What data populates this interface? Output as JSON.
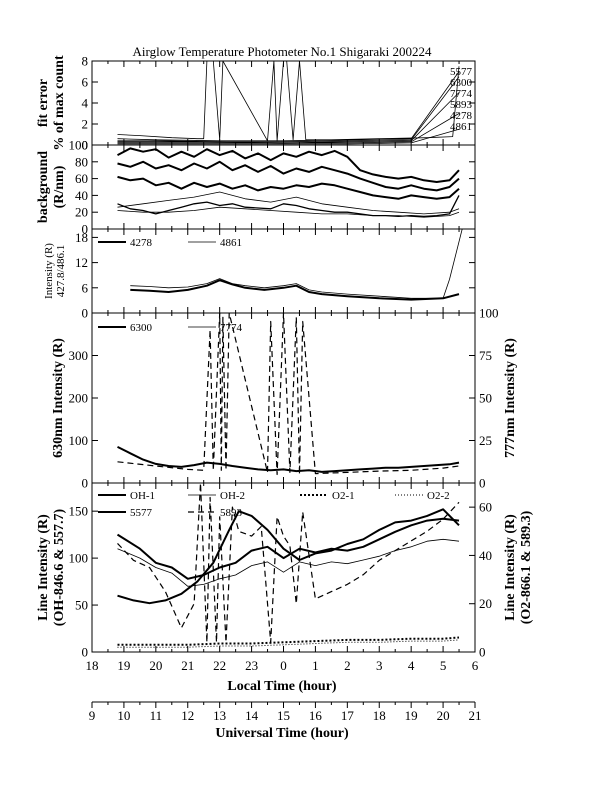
{
  "title": "Airglow Temperature Photometer No.1  Shigaraki  200224",
  "x_axis": {
    "label": "Local Time (hour)",
    "ticks": [
      "18",
      "19",
      "20",
      "21",
      "22",
      "23",
      "0",
      "1",
      "2",
      "3",
      "4",
      "5",
      "6"
    ]
  },
  "x2_axis": {
    "label": "Universal Time (hour)",
    "ticks": [
      "9",
      "10",
      "11",
      "12",
      "13",
      "14",
      "15",
      "16",
      "17",
      "18",
      "19",
      "20",
      "21"
    ]
  },
  "chart_data": [
    {
      "type": "line",
      "ylabel": [
        "fit error",
        "% of max count"
      ],
      "ylim": [
        0,
        8
      ],
      "yticks": [
        "0",
        "2",
        "4",
        "6",
        "8"
      ],
      "series_labels": [
        "5577",
        "6300",
        "7774",
        "5893",
        "4278",
        "4861"
      ],
      "series": [
        {
          "name": "5577",
          "style": "thin",
          "x": [
            18.8,
            19.5,
            20.5,
            21.3,
            21.5,
            21.6,
            21.8,
            22.0,
            22.1,
            23.5,
            23.7,
            23.8,
            24.0,
            24.1,
            24.3,
            24.5,
            24.7,
            25.5,
            27.0,
            28.5,
            29.3,
            29.5
          ],
          "y": [
            1.0,
            0.9,
            0.7,
            0.6,
            0.6,
            8.0,
            8.0,
            0.5,
            8.0,
            0.4,
            8.0,
            0.4,
            8.0,
            8.0,
            0.5,
            8.0,
            0.5,
            0.5,
            0.6,
            0.7,
            0.8,
            7.5
          ]
        },
        {
          "name": "6300",
          "style": "thin",
          "x": [
            18.8,
            20.0,
            22.0,
            24.0,
            26.0,
            28.0,
            29.5
          ],
          "y": [
            0.6,
            0.5,
            0.4,
            0.4,
            0.5,
            0.6,
            7.0
          ]
        },
        {
          "name": "7774",
          "style": "thin",
          "x": [
            18.8,
            20.0,
            22.0,
            24.0,
            26.0,
            28.0,
            29.5
          ],
          "y": [
            0.4,
            0.4,
            0.3,
            0.3,
            0.4,
            0.5,
            6.5
          ]
        },
        {
          "name": "5893",
          "style": "thin",
          "x": [
            18.8,
            20.0,
            22.0,
            24.0,
            26.0,
            28.0,
            29.5
          ],
          "y": [
            0.3,
            0.3,
            0.3,
            0.2,
            0.3,
            0.4,
            5.0
          ]
        },
        {
          "name": "4278",
          "style": "thin",
          "x": [
            18.8,
            20.0,
            22.0,
            24.0,
            26.0,
            28.0,
            29.5
          ],
          "y": [
            0.2,
            0.2,
            0.2,
            0.2,
            0.2,
            0.3,
            3.0
          ]
        },
        {
          "name": "4861",
          "style": "thin",
          "x": [
            18.8,
            20.0,
            22.0,
            24.0,
            26.0,
            28.0,
            29.5
          ],
          "y": [
            0.1,
            0.1,
            0.1,
            0.1,
            0.1,
            0.2,
            1.5
          ]
        }
      ]
    },
    {
      "type": "line",
      "ylabel": [
        "background",
        "(R/nm)"
      ],
      "ylim": [
        0,
        100
      ],
      "yticks": [
        "0",
        "20",
        "40",
        "60",
        "80",
        "100"
      ],
      "series": [
        {
          "style": "thick",
          "x": [
            18.8,
            19.2,
            19.6,
            20.0,
            20.4,
            20.8,
            21.2,
            21.6,
            22.0,
            22.4,
            22.8,
            23.2,
            23.6,
            24.0,
            24.4,
            24.8,
            25.2,
            25.6,
            26.0,
            26.4,
            26.8,
            27.2,
            27.6,
            28.0,
            28.4,
            28.8,
            29.2,
            29.5
          ],
          "y": [
            88,
            96,
            92,
            95,
            85,
            92,
            86,
            95,
            88,
            93,
            84,
            90,
            82,
            90,
            86,
            92,
            88,
            93,
            86,
            70,
            65,
            62,
            60,
            62,
            58,
            56,
            58,
            70
          ]
        },
        {
          "style": "thick",
          "x": [
            18.8,
            19.2,
            19.6,
            20.0,
            20.4,
            20.8,
            21.2,
            21.6,
            22.0,
            22.4,
            22.8,
            23.2,
            23.6,
            24.0,
            24.4,
            24.8,
            25.2,
            25.6,
            26.0,
            26.4,
            26.8,
            27.2,
            27.6,
            28.0,
            28.4,
            28.8,
            29.2,
            29.5
          ],
          "y": [
            78,
            74,
            80,
            72,
            76,
            70,
            78,
            72,
            80,
            70,
            76,
            68,
            75,
            66,
            72,
            68,
            74,
            70,
            66,
            60,
            55,
            50,
            48,
            52,
            48,
            46,
            50,
            60
          ]
        },
        {
          "style": "thick",
          "x": [
            18.8,
            19.2,
            19.6,
            20.0,
            20.4,
            20.8,
            21.2,
            21.6,
            22.0,
            22.4,
            22.8,
            23.2,
            23.6,
            24.0,
            24.4,
            24.8,
            25.2,
            25.6,
            26.0,
            26.4,
            26.8,
            27.2,
            27.6,
            28.0,
            28.4,
            28.8,
            29.2,
            29.5
          ],
          "y": [
            62,
            58,
            60,
            52,
            55,
            48,
            55,
            50,
            54,
            48,
            52,
            46,
            50,
            48,
            52,
            50,
            54,
            52,
            48,
            44,
            40,
            38,
            36,
            40,
            38,
            36,
            38,
            48
          ]
        },
        {
          "style": "medium",
          "x": [
            18.8,
            19.2,
            19.6,
            20.0,
            20.4,
            20.8,
            21.2,
            21.6,
            22.0,
            22.4,
            22.8,
            23.2,
            23.6,
            24.0,
            24.4,
            24.8,
            25.2,
            25.6,
            26.0,
            26.4,
            26.8,
            27.2,
            27.6,
            28.0,
            28.4,
            28.8,
            29.2,
            29.5
          ],
          "y": [
            30,
            24,
            22,
            18,
            22,
            26,
            30,
            32,
            28,
            30,
            26,
            25,
            24,
            30,
            28,
            24,
            22,
            20,
            20,
            18,
            16,
            16,
            15,
            16,
            15,
            16,
            18,
            40
          ]
        },
        {
          "style": "thin",
          "x": [
            18.8,
            19.6,
            20.4,
            21.2,
            22.0,
            22.8,
            23.6,
            24.4,
            25.2,
            26.0,
            26.8,
            27.6,
            28.4,
            29.2,
            29.5
          ],
          "y": [
            26,
            30,
            34,
            38,
            44,
            36,
            32,
            38,
            30,
            26,
            22,
            20,
            18,
            20,
            24
          ]
        },
        {
          "style": "thin",
          "x": [
            18.8,
            19.6,
            20.4,
            21.2,
            22.0,
            22.8,
            23.6,
            24.4,
            25.2,
            26.0,
            26.8,
            27.6,
            28.4,
            29.2,
            29.5
          ],
          "y": [
            22,
            20,
            20,
            22,
            26,
            24,
            22,
            20,
            18,
            18,
            16,
            16,
            14,
            16,
            20
          ]
        }
      ]
    },
    {
      "type": "line",
      "ylabel": [
        "Intensity (R)",
        "427.8/486.1"
      ],
      "ylim": [
        0,
        20
      ],
      "yticks": [
        "0",
        "6",
        "12",
        "18"
      ],
      "legend": [
        "4278",
        "4861"
      ],
      "series": [
        {
          "name": "4278",
          "style": "thick",
          "x": [
            19.2,
            19.8,
            20.4,
            21.0,
            21.6,
            22.0,
            22.4,
            22.8,
            23.4,
            24.0,
            24.4,
            24.8,
            25.2,
            26.0,
            27.0,
            28.0,
            29.0,
            29.5
          ],
          "y": [
            5.5,
            5.3,
            5.0,
            5.5,
            6.5,
            7.8,
            6.8,
            6.0,
            5.5,
            6.0,
            6.5,
            5.0,
            4.5,
            4.0,
            3.5,
            3.2,
            3.5,
            4.5
          ]
        },
        {
          "name": "4861",
          "style": "thin",
          "x": [
            19.2,
            19.8,
            20.4,
            21.0,
            21.6,
            22.0,
            22.4,
            22.8,
            23.4,
            24.0,
            24.4,
            24.8,
            25.2,
            26.0,
            27.0,
            28.0,
            29.0,
            29.2,
            29.6
          ],
          "y": [
            6.5,
            6.3,
            6.0,
            6.2,
            7.0,
            8.2,
            7.0,
            6.5,
            6.0,
            6.5,
            7.0,
            5.5,
            5.0,
            4.5,
            4.0,
            3.5,
            3.5,
            8.0,
            20.0
          ]
        }
      ]
    },
    {
      "type": "line",
      "ylabel": "630nm Intensity (R)",
      "y2label": "777nm Intensity (R)",
      "ylim": [
        0,
        400
      ],
      "yticks": [
        "0",
        "100",
        "200",
        "300"
      ],
      "y2lim": [
        0,
        100
      ],
      "y2ticks": [
        "0",
        "25",
        "50",
        "75",
        "100"
      ],
      "legend": [
        "6300",
        "7774"
      ],
      "series": [
        {
          "name": "6300",
          "style": "thick",
          "x": [
            18.8,
            19.2,
            19.6,
            20.0,
            20.4,
            20.8,
            21.2,
            21.6,
            22.0,
            22.4,
            22.8,
            23.2,
            23.6,
            24.0,
            24.4,
            24.8,
            25.2,
            25.6,
            26.0,
            26.4,
            26.8,
            27.2,
            27.6,
            28.0,
            28.4,
            28.8,
            29.2,
            29.5
          ],
          "y": [
            85,
            70,
            55,
            45,
            40,
            38,
            42,
            48,
            45,
            40,
            36,
            32,
            30,
            32,
            28,
            30,
            26,
            28,
            30,
            32,
            34,
            36,
            36,
            38,
            40,
            42,
            44,
            48
          ]
        },
        {
          "name": "7774",
          "style": "dashed",
          "x": [
            18.8,
            20.0,
            21.0,
            21.5,
            21.7,
            21.8,
            22.0,
            22.05,
            22.1,
            22.2,
            22.3,
            23.5,
            23.6,
            23.8,
            24.0,
            24.2,
            24.4,
            24.5,
            24.6,
            25.0,
            26.0,
            27.0,
            28.0,
            29.0,
            29.5
          ],
          "y": [
            50,
            40,
            32,
            30,
            360,
            30,
            400,
            30,
            390,
            30,
            400,
            25,
            380,
            20,
            400,
            25,
            390,
            20,
            380,
            22,
            25,
            28,
            30,
            35,
            40
          ]
        }
      ]
    },
    {
      "type": "line",
      "ylabel": [
        "Line Intensity (R)",
        "(OH-846.6 & 557.7)"
      ],
      "y2label": [
        "Line Intensity (R)",
        "(O2-866.1 & 589.3)"
      ],
      "ylim": [
        0,
        180
      ],
      "yticks": [
        "0",
        "50",
        "100",
        "150"
      ],
      "y2lim": [
        0,
        70
      ],
      "y2ticks": [
        "0",
        "20",
        "40",
        "60"
      ],
      "legend": [
        "OH-1",
        "OH-2",
        "O2-1",
        "O2-2",
        "5577",
        "5893"
      ],
      "series": [
        {
          "name": "OH-1",
          "style": "thick",
          "x": [
            18.8,
            19.5,
            20.0,
            20.5,
            21.0,
            21.5,
            22.0,
            22.5,
            23.0,
            23.5,
            24.0,
            24.5,
            25.0,
            25.5,
            26.0,
            26.5,
            27.0,
            27.5,
            28.0,
            28.5,
            29.0,
            29.5
          ],
          "y": [
            125,
            110,
            95,
            90,
            78,
            82,
            90,
            95,
            108,
            112,
            100,
            110,
            106,
            110,
            108,
            112,
            120,
            128,
            135,
            140,
            142,
            140
          ]
        },
        {
          "name": "OH-2",
          "style": "thin",
          "x": [
            18.8,
            19.5,
            20.0,
            20.5,
            21.0,
            21.5,
            22.0,
            22.5,
            23.0,
            23.5,
            24.0,
            24.5,
            25.0,
            25.5,
            26.0,
            26.5,
            27.0,
            27.5,
            28.0,
            28.5,
            29.0,
            29.5
          ],
          "y": [
            110,
            100,
            90,
            84,
            70,
            72,
            78,
            82,
            92,
            96,
            85,
            96,
            92,
            96,
            94,
            98,
            102,
            108,
            112,
            118,
            120,
            118
          ]
        },
        {
          "name": "O2-1",
          "style": "dotted",
          "x": [
            18.8,
            20.0,
            21.0,
            22.0,
            23.0,
            24.0,
            25.0,
            26.0,
            27.0,
            28.0,
            29.0,
            29.5
          ],
          "y": [
            3,
            3,
            3,
            3.5,
            3.5,
            4,
            4.5,
            5,
            5,
            5.5,
            5.5,
            6
          ]
        },
        {
          "name": "O2-2",
          "style": "finedotted",
          "x": [
            18.8,
            20.0,
            21.0,
            22.0,
            23.0,
            24.0,
            25.0,
            26.0,
            27.0,
            28.0,
            29.0,
            29.5
          ],
          "y": [
            2,
            2,
            2,
            2.5,
            2.5,
            3,
            3.5,
            4,
            4,
            4.5,
            4.5,
            5
          ]
        },
        {
          "name": "5577",
          "style": "thick",
          "x": [
            18.8,
            19.3,
            19.8,
            20.3,
            20.8,
            21.3,
            21.8,
            22.3,
            22.6,
            23.0,
            23.5,
            24.0,
            24.5,
            25.0,
            25.5,
            26.0,
            26.5,
            27.0,
            27.5,
            28.0,
            28.5,
            29.0,
            29.5
          ],
          "y": [
            60,
            55,
            52,
            55,
            62,
            75,
            95,
            130,
            150,
            145,
            130,
            110,
            98,
            105,
            108,
            115,
            120,
            130,
            138,
            140,
            145,
            152,
            135
          ]
        },
        {
          "name": "5893",
          "style": "dashed",
          "x": [
            18.8,
            19.3,
            19.8,
            20.3,
            20.8,
            21.2,
            21.4,
            21.6,
            21.7,
            21.9,
            22.0,
            22.2,
            22.4,
            22.6,
            23.0,
            23.3,
            23.6,
            23.8,
            24.0,
            24.2,
            24.4,
            24.6,
            25.0,
            25.5,
            26.0,
            26.5,
            27.0,
            27.5,
            28.0,
            28.5,
            29.0,
            29.5
          ],
          "y": [
            45,
            38,
            35,
            25,
            10,
            20,
            70,
            4,
            64,
            4,
            56,
            4,
            60,
            50,
            48,
            52,
            4,
            56,
            48,
            44,
            20,
            58,
            22,
            25,
            28,
            32,
            38,
            42,
            46,
            50,
            55,
            62
          ]
        }
      ]
    }
  ]
}
